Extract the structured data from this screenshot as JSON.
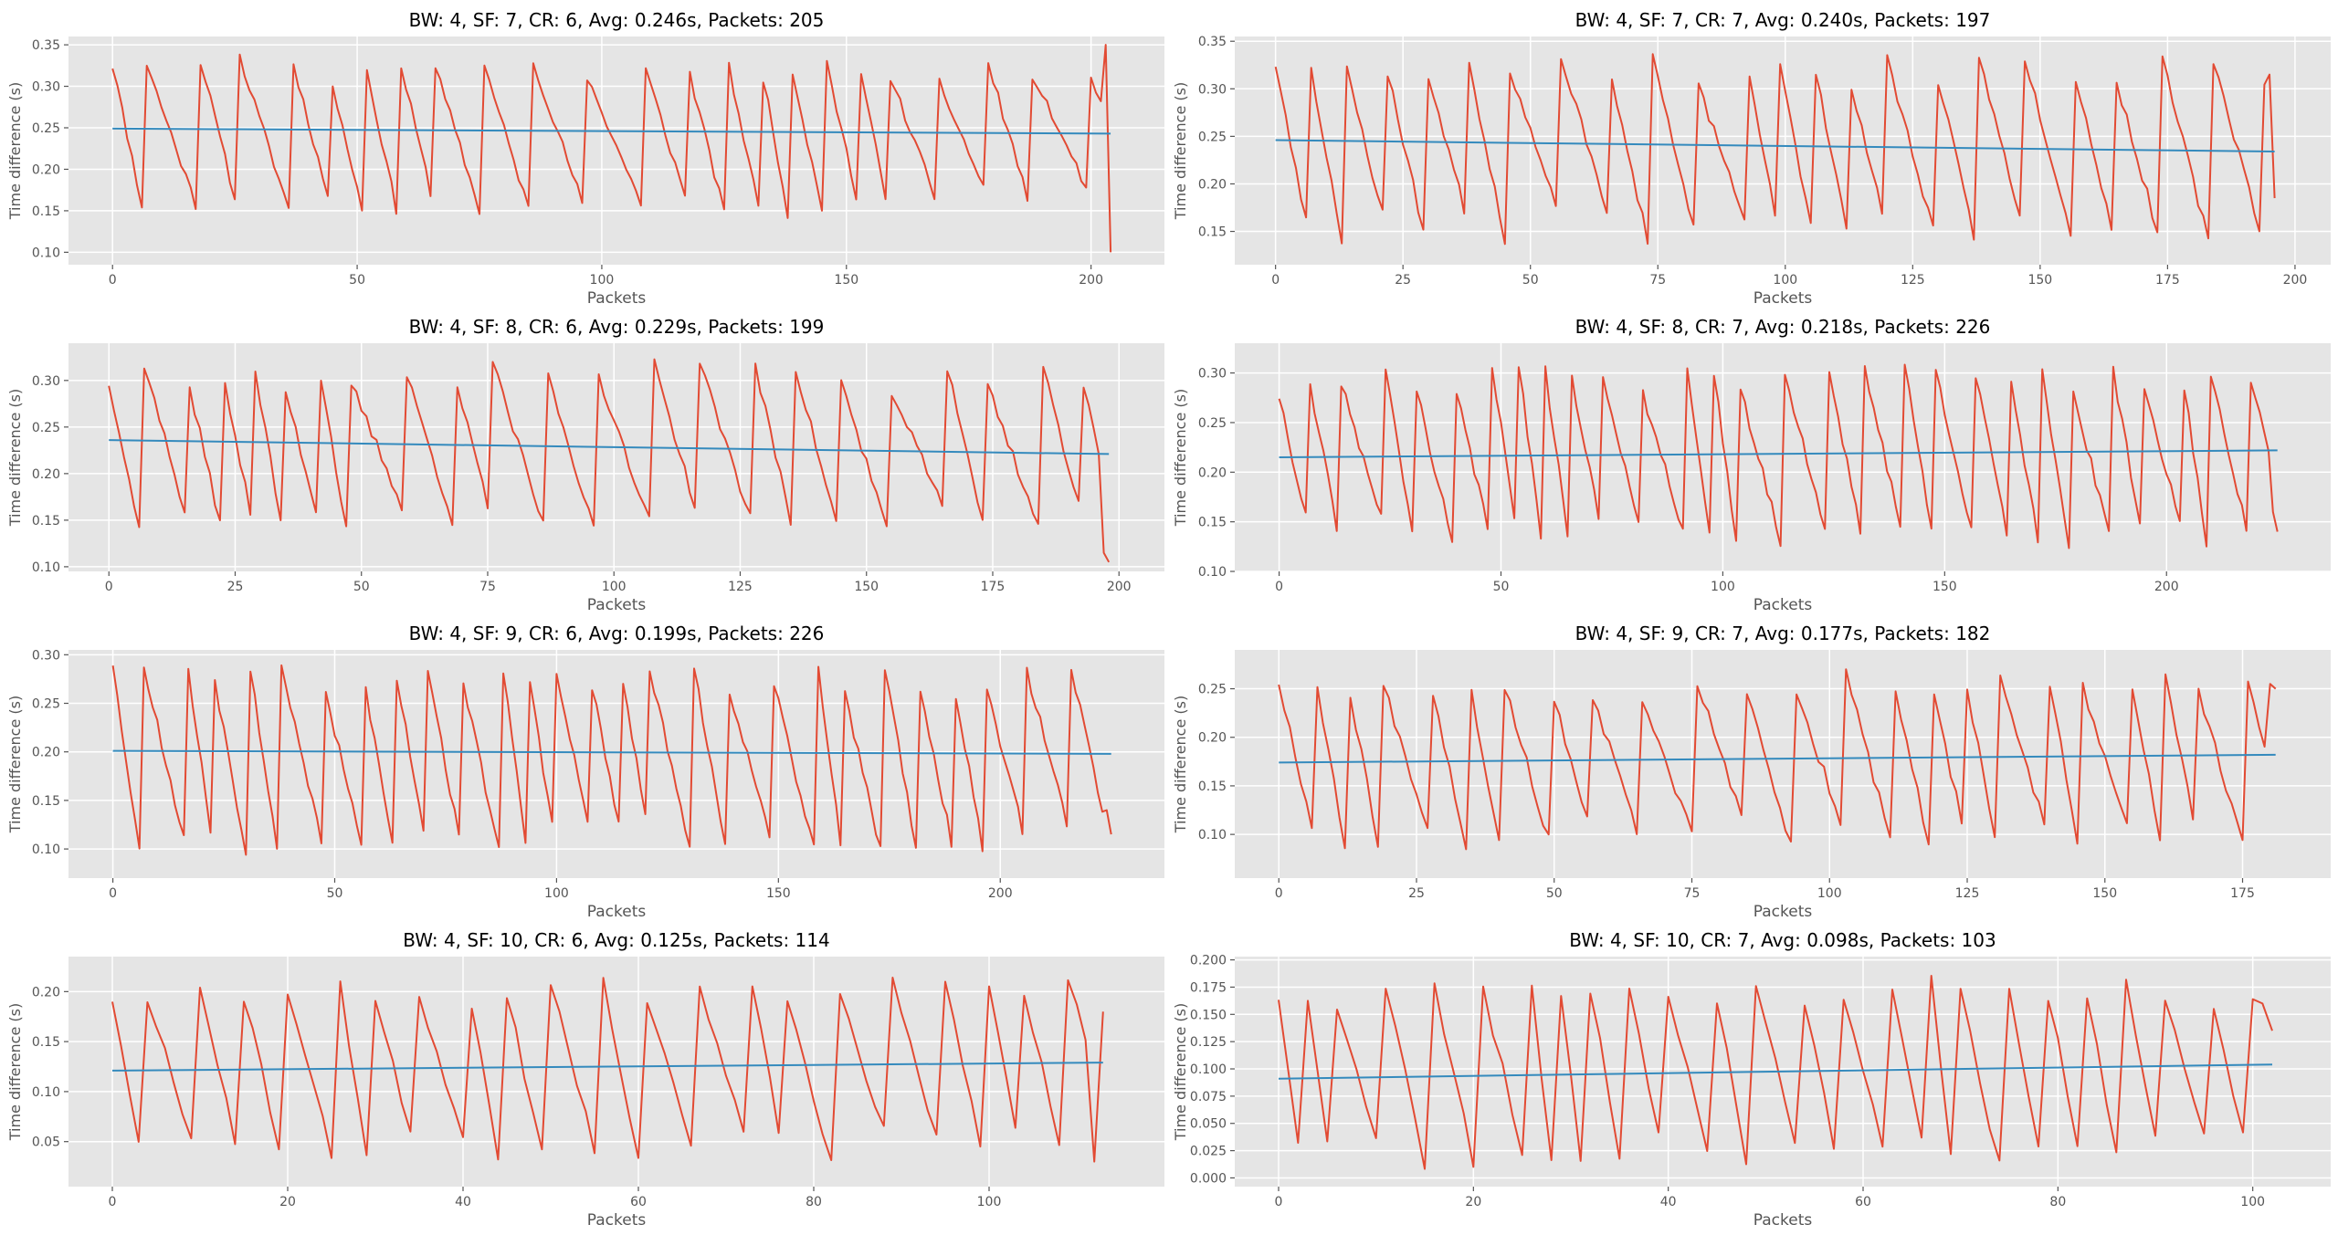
{
  "colors": {
    "panel_bg": "#e5e5e5",
    "grid": "#ffffff",
    "series": "#e24a33",
    "trend": "#348abd",
    "text": "#000000",
    "tick_text": "#555555"
  },
  "chart_data": [
    {
      "type": "line",
      "title": "BW: 4, SF: 7, CR: 6, Avg: 0.246s, Packets: 205",
      "xlabel": "Packets",
      "ylabel": "Time difference (s)",
      "xlim": [
        -9,
        215
      ],
      "ylim": [
        0.085,
        0.36
      ],
      "xticks": [
        0,
        50,
        100,
        150,
        200
      ],
      "yticks": [
        0.1,
        0.15,
        0.2,
        0.25,
        0.3,
        0.35
      ],
      "ytick_labels": [
        "0.10",
        "0.15",
        "0.20",
        "0.25",
        "0.30",
        "0.35"
      ],
      "grid": true,
      "wave": {
        "n": 205,
        "min": 0.145,
        "max": 0.335,
        "avg": 0.246,
        "period_range": [
          6,
          12
        ],
        "seed": 11,
        "end_values": [
          0.35,
          0.1
        ]
      },
      "trend": {
        "start": 0.249,
        "end": 0.243
      }
    },
    {
      "type": "line",
      "title": "BW: 4, SF: 7, CR: 7, Avg: 0.240s, Packets: 197",
      "xlabel": "Packets",
      "ylabel": "Time difference (s)",
      "xlim": [
        -8,
        207
      ],
      "ylim": [
        0.115,
        0.355
      ],
      "xticks": [
        0,
        25,
        50,
        75,
        100,
        125,
        150,
        175,
        200
      ],
      "yticks": [
        0.15,
        0.2,
        0.25,
        0.3,
        0.35
      ],
      "ytick_labels": [
        "0.15",
        "0.20",
        "0.25",
        "0.30",
        "0.35"
      ],
      "grid": true,
      "wave": {
        "n": 197,
        "min": 0.14,
        "max": 0.335,
        "avg": 0.24,
        "period_range": [
          6,
          10
        ],
        "seed": 23,
        "end_values": [
          0.315,
          0.185
        ]
      },
      "trend": {
        "start": 0.246,
        "end": 0.234
      }
    },
    {
      "type": "line",
      "title": "BW: 4, SF: 8, CR: 6, Avg: 0.229s, Packets: 199",
      "xlabel": "Packets",
      "ylabel": "Time difference (s)",
      "xlim": [
        -8,
        209
      ],
      "ylim": [
        0.095,
        0.34
      ],
      "xticks": [
        0,
        25,
        50,
        75,
        100,
        125,
        150,
        175,
        200
      ],
      "yticks": [
        0.1,
        0.15,
        0.2,
        0.25,
        0.3
      ],
      "ytick_labels": [
        "0.10",
        "0.15",
        "0.20",
        "0.25",
        "0.30"
      ],
      "grid": true,
      "wave": {
        "n": 199,
        "min": 0.135,
        "max": 0.32,
        "avg": 0.229,
        "period_range": [
          6,
          11
        ],
        "seed": 37,
        "end_values": [
          0.115,
          0.105
        ]
      },
      "trend": {
        "start": 0.236,
        "end": 0.221
      }
    },
    {
      "type": "line",
      "title": "BW: 4, SF: 8, CR: 7, Avg: 0.218s, Packets: 226",
      "xlabel": "Packets",
      "ylabel": "Time difference (s)",
      "xlim": [
        -10,
        237
      ],
      "ylim": [
        0.1,
        0.33
      ],
      "xticks": [
        0,
        50,
        100,
        150,
        200
      ],
      "yticks": [
        0.1,
        0.15,
        0.2,
        0.25,
        0.3
      ],
      "ytick_labels": [
        "0.10",
        "0.15",
        "0.20",
        "0.25",
        "0.30"
      ],
      "grid": true,
      "wave": {
        "n": 226,
        "min": 0.125,
        "max": 0.31,
        "avg": 0.218,
        "period_range": [
          6,
          10
        ],
        "seed": 41,
        "end_values": [
          0.16,
          0.14
        ]
      },
      "trend": {
        "start": 0.215,
        "end": 0.222
      }
    },
    {
      "type": "line",
      "title": "BW: 4, SF: 9, CR: 6, Avg: 0.199s, Packets: 226",
      "xlabel": "Packets",
      "ylabel": "Time difference (s)",
      "xlim": [
        -10,
        237
      ],
      "ylim": [
        0.07,
        0.305
      ],
      "xticks": [
        0,
        50,
        100,
        150,
        200
      ],
      "yticks": [
        0.1,
        0.15,
        0.2,
        0.25,
        0.3
      ],
      "ytick_labels": [
        "0.10",
        "0.15",
        "0.20",
        "0.25",
        "0.30"
      ],
      "grid": true,
      "wave": {
        "n": 226,
        "min": 0.095,
        "max": 0.29,
        "avg": 0.199,
        "period_range": [
          6,
          10
        ],
        "seed": 53,
        "end_values": [
          0.14,
          0.115
        ]
      },
      "trend": {
        "start": 0.201,
        "end": 0.198
      }
    },
    {
      "type": "line",
      "title": "BW: 4, SF: 9, CR: 7, Avg: 0.177s, Packets: 182",
      "xlabel": "Packets",
      "ylabel": "Time difference (s)",
      "xlim": [
        -8,
        191
      ],
      "ylim": [
        0.055,
        0.29
      ],
      "xticks": [
        0,
        25,
        50,
        75,
        100,
        125,
        150,
        175
      ],
      "yticks": [
        0.1,
        0.15,
        0.2,
        0.25
      ],
      "ytick_labels": [
        "0.10",
        "0.15",
        "0.20",
        "0.25"
      ],
      "grid": true,
      "wave": {
        "n": 182,
        "min": 0.085,
        "max": 0.27,
        "avg": 0.177,
        "period_range": [
          6,
          10
        ],
        "seed": 67,
        "end_values": [
          0.255,
          0.25
        ]
      },
      "trend": {
        "start": 0.174,
        "end": 0.182
      }
    },
    {
      "type": "line",
      "title": "BW: 4, SF: 10, CR: 6, Avg: 0.125s, Packets: 114",
      "xlabel": "Packets",
      "ylabel": "Time difference (s)",
      "xlim": [
        -5,
        120
      ],
      "ylim": [
        0.005,
        0.235
      ],
      "xticks": [
        0,
        20,
        40,
        60,
        80,
        100
      ],
      "yticks": [
        0.05,
        0.1,
        0.15,
        0.2
      ],
      "ytick_labels": [
        "0.05",
        "0.10",
        "0.15",
        "0.20"
      ],
      "grid": true,
      "wave": {
        "n": 114,
        "min": 0.03,
        "max": 0.215,
        "avg": 0.125,
        "period_range": [
          4,
          6
        ],
        "seed": 71,
        "end_values": [
          0.03,
          0.18
        ]
      },
      "trend": {
        "start": 0.121,
        "end": 0.129
      }
    },
    {
      "type": "line",
      "title": "BW: 4, SF: 10, CR: 7, Avg: 0.098s, Packets: 103",
      "xlabel": "Packets",
      "ylabel": "Time difference (s)",
      "xlim": [
        -4.5,
        108
      ],
      "ylim": [
        -0.008,
        0.203
      ],
      "xticks": [
        0,
        20,
        40,
        60,
        80,
        100
      ],
      "yticks": [
        0.0,
        0.025,
        0.05,
        0.075,
        0.1,
        0.125,
        0.15,
        0.175,
        0.2
      ],
      "ytick_labels": [
        "0.000",
        "0.025",
        "0.050",
        "0.075",
        "0.100",
        "0.125",
        "0.150",
        "0.175",
        "0.200"
      ],
      "grid": true,
      "wave": {
        "n": 103,
        "min": 0.01,
        "max": 0.185,
        "avg": 0.098,
        "period_range": [
          3,
          5
        ],
        "seed": 83,
        "end_values": [
          0.16,
          0.135
        ]
      },
      "trend": {
        "start": 0.091,
        "end": 0.104
      }
    }
  ]
}
